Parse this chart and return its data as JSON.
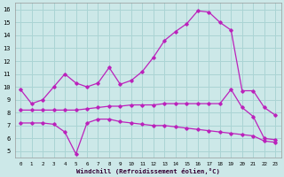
{
  "xlabel": "Windchill (Refroidissement éolien,°C)",
  "bg_color": "#cce8e8",
  "grid_color": "#aad4d4",
  "line_color": "#bb22bb",
  "x": [
    0,
    1,
    2,
    3,
    4,
    5,
    6,
    7,
    8,
    9,
    10,
    11,
    12,
    13,
    14,
    15,
    16,
    17,
    18,
    19,
    20,
    21,
    22,
    23
  ],
  "line1": [
    9.8,
    8.7,
    9.0,
    10.0,
    11.0,
    10.3,
    10.0,
    10.3,
    11.5,
    10.2,
    10.5,
    11.2,
    12.3,
    13.6,
    14.3,
    14.9,
    15.9,
    15.8,
    15.0,
    14.4,
    9.7,
    9.7,
    8.4,
    7.8
  ],
  "line2": [
    8.2,
    8.2,
    8.2,
    8.2,
    8.2,
    8.2,
    8.3,
    8.4,
    8.5,
    8.5,
    8.6,
    8.6,
    8.6,
    8.7,
    8.7,
    8.7,
    8.7,
    8.7,
    8.7,
    9.8,
    8.4,
    7.7,
    6.0,
    5.9
  ],
  "line3": [
    7.2,
    7.2,
    7.2,
    7.1,
    6.5,
    4.8,
    7.2,
    7.5,
    7.5,
    7.3,
    7.2,
    7.1,
    7.0,
    7.0,
    6.9,
    6.8,
    6.7,
    6.6,
    6.5,
    6.4,
    6.3,
    6.2,
    5.8,
    5.7
  ],
  "ylim": [
    4.5,
    16.5
  ],
  "xlim": [
    -0.5,
    23.5
  ],
  "yticks": [
    5,
    6,
    7,
    8,
    9,
    10,
    11,
    12,
    13,
    14,
    15,
    16
  ],
  "xticks": [
    0,
    1,
    2,
    3,
    4,
    5,
    6,
    7,
    8,
    9,
    10,
    11,
    12,
    13,
    14,
    15,
    16,
    17,
    18,
    19,
    20,
    21,
    22,
    23
  ]
}
